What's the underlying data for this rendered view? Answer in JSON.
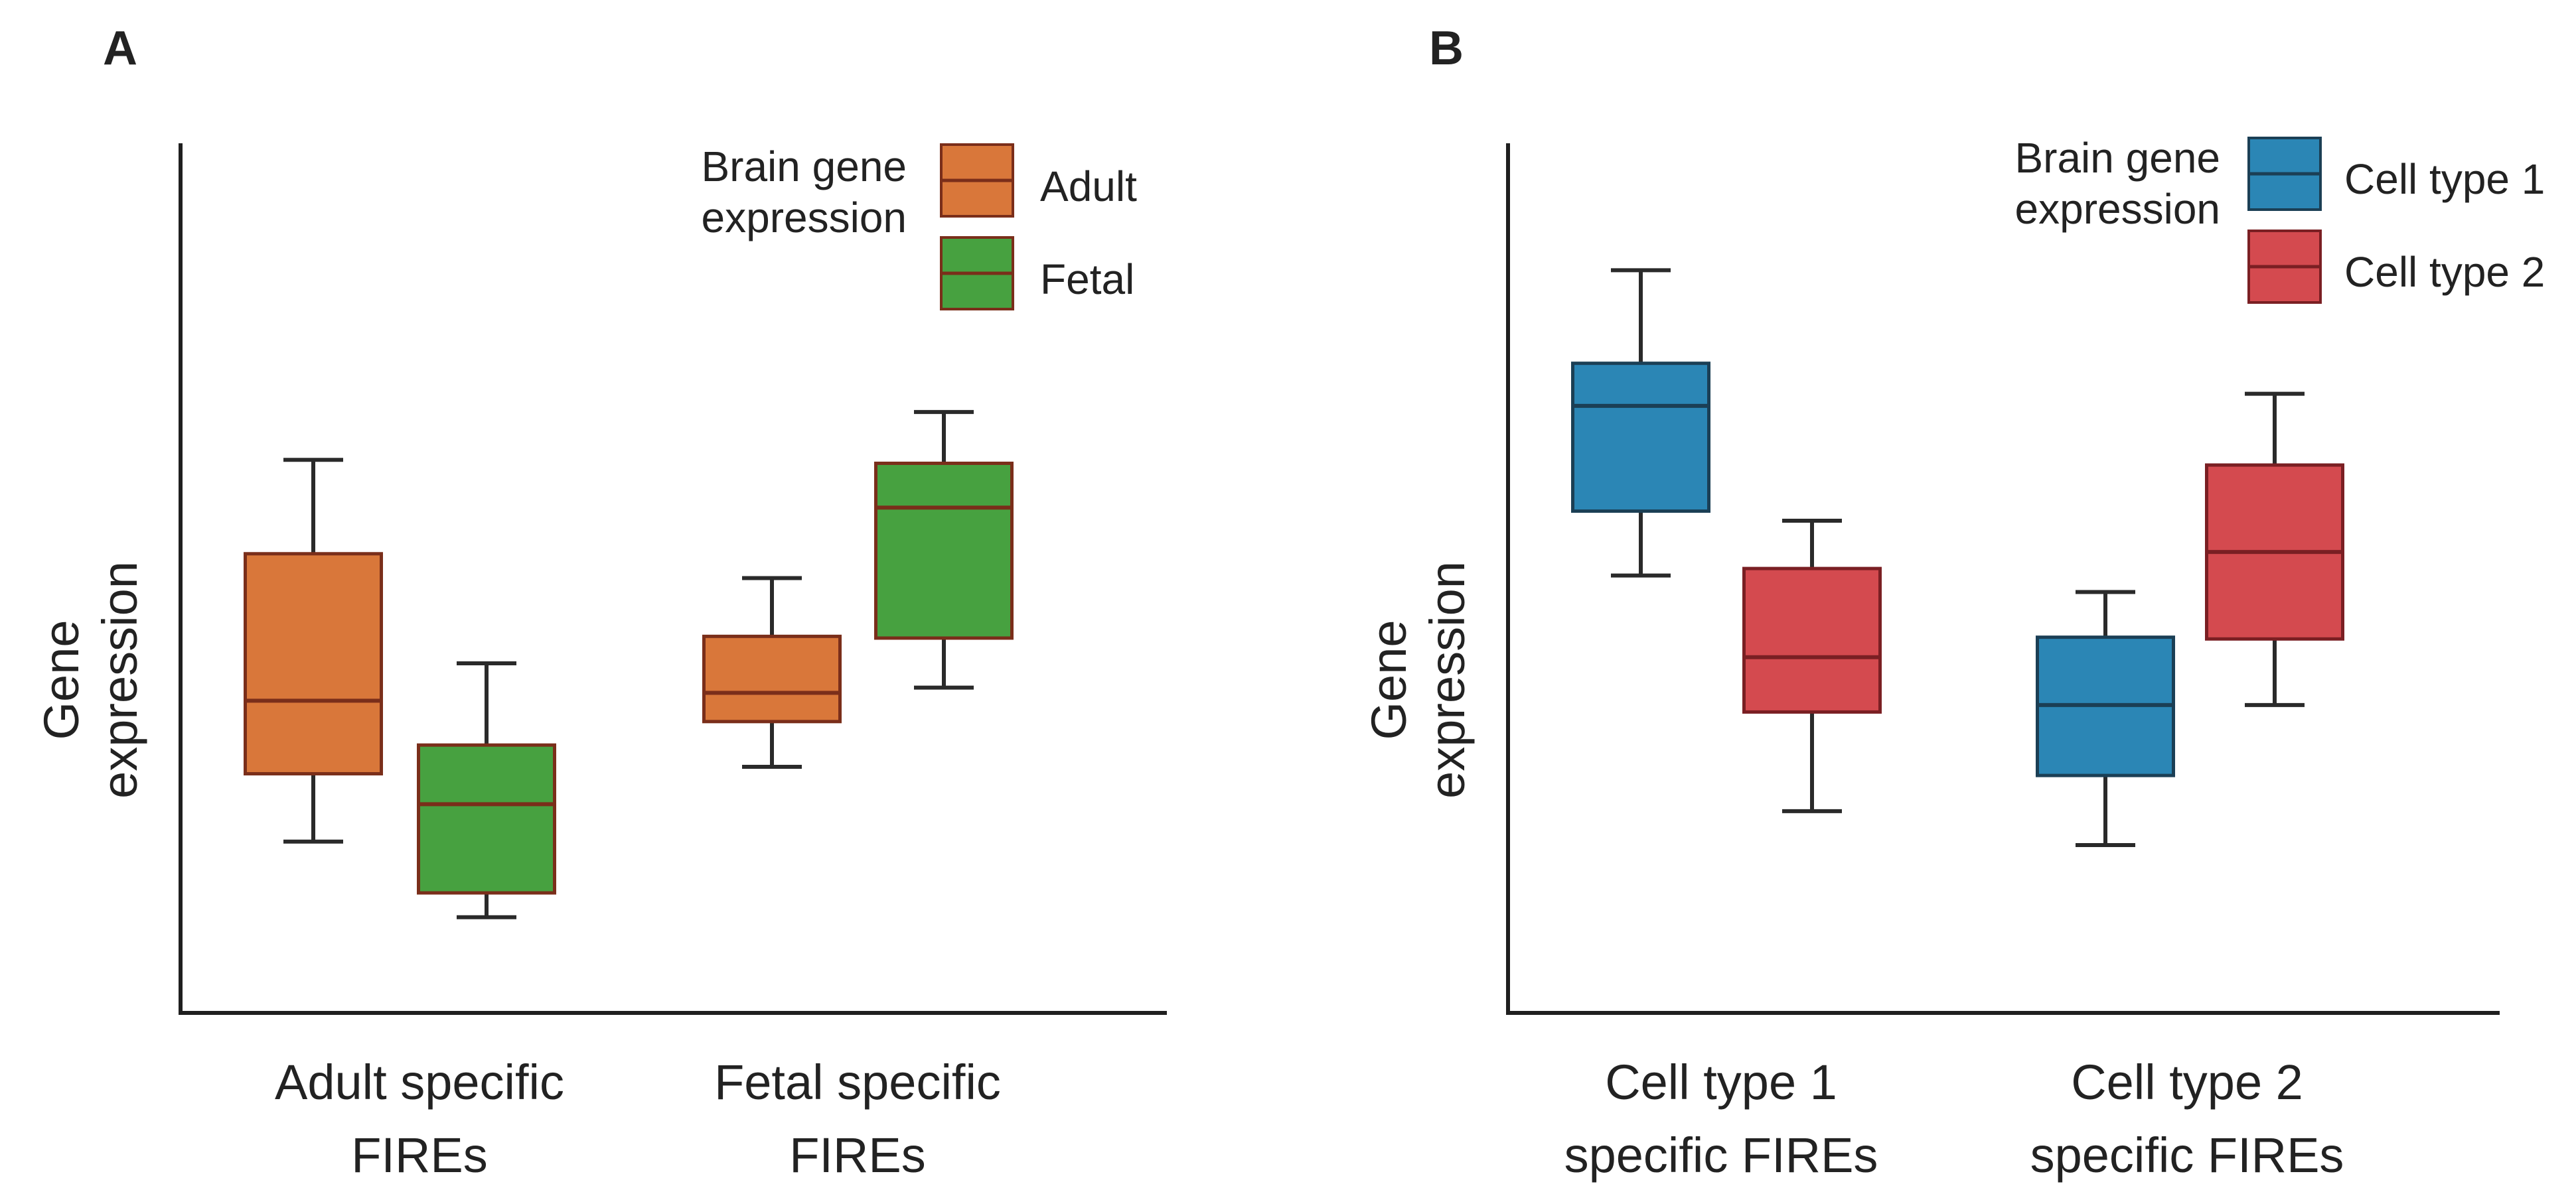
{
  "chart_data": [
    {
      "panel": "A",
      "type": "box",
      "ylabel": [
        "Gene",
        "expression"
      ],
      "xlabel": "",
      "y_axis_ticks": "none",
      "ylim": [
        0,
        100
      ],
      "categories": [
        [
          "Adult specific",
          "FIREs"
        ],
        [
          "Fetal specific",
          "FIREs"
        ]
      ],
      "legend": {
        "title": [
          "Brain gene",
          "expression"
        ],
        "placement": "top-right"
      },
      "series": [
        {
          "name": "Adult",
          "color": "#D9773A",
          "median_color": "#7A2E1A",
          "boxes": [
            {
              "category": 0,
              "whisker_low": 19.7,
              "q1": 27.5,
              "median": 35.9,
              "q3": 52.8,
              "whisker_high": 63.6
            },
            {
              "category": 1,
              "whisker_low": 28.3,
              "q1": 33.5,
              "median": 36.8,
              "q3": 43.3,
              "whisker_high": 50.0
            }
          ]
        },
        {
          "name": "Fetal",
          "color": "#47A140",
          "median_color": "#7A2E1A",
          "boxes": [
            {
              "category": 0,
              "whisker_low": 11.0,
              "q1": 13.8,
              "median": 24.0,
              "q3": 30.8,
              "whisker_high": 40.2
            },
            {
              "category": 1,
              "whisker_low": 37.4,
              "q1": 43.1,
              "median": 58.1,
              "q3": 63.2,
              "whisker_high": 69.1
            }
          ]
        }
      ]
    },
    {
      "panel": "B",
      "type": "box",
      "ylabel": [
        "Gene",
        "expression"
      ],
      "xlabel": "",
      "y_axis_ticks": "none",
      "ylim": [
        0,
        100
      ],
      "categories": [
        [
          "Cell type 1",
          "specific FIREs"
        ],
        [
          "Cell type 2",
          "specific FIREs"
        ]
      ],
      "legend": {
        "title": [
          "Brain gene",
          "expression"
        ],
        "placement": "top-right"
      },
      "series": [
        {
          "name": "Cell type 1",
          "color": "#2B86B5",
          "median_color": "#1B3F55",
          "boxes": [
            {
              "category": 0,
              "whisker_low": 50.3,
              "q1": 57.7,
              "median": 69.8,
              "q3": 74.7,
              "whisker_high": 85.4
            },
            {
              "category": 1,
              "whisker_low": 19.3,
              "q1": 27.3,
              "median": 35.4,
              "q3": 43.2,
              "whisker_high": 48.4
            }
          ]
        },
        {
          "name": "Cell type 2",
          "color": "#D44A4F",
          "median_color": "#7A1F23",
          "boxes": [
            {
              "category": 0,
              "whisker_low": 23.2,
              "q1": 34.6,
              "median": 40.9,
              "q3": 51.1,
              "whisker_high": 56.6
            },
            {
              "category": 1,
              "whisker_low": 35.4,
              "q1": 43.0,
              "median": 53.0,
              "q3": 63.0,
              "whisker_high": 71.2
            }
          ]
        }
      ]
    }
  ]
}
